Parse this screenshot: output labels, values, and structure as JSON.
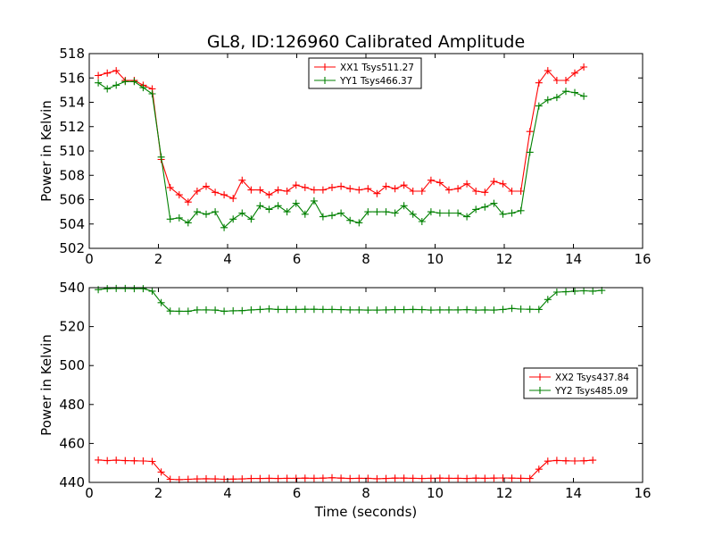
{
  "chart_data": [
    {
      "type": "line",
      "title": "GL8, ID:126960 Calibrated Amplitude",
      "xlabel": "",
      "ylabel": "Power in Kelvin",
      "xlim": [
        0,
        16
      ],
      "ylim": [
        502,
        518
      ],
      "xticks": [
        0,
        2,
        4,
        6,
        8,
        10,
        12,
        14,
        16
      ],
      "yticks": [
        502,
        504,
        506,
        508,
        510,
        512,
        514,
        516,
        518
      ],
      "legend_position": "top-center",
      "x": [
        0.26,
        0.52,
        0.78,
        1.04,
        1.3,
        1.56,
        1.82,
        2.08,
        2.34,
        2.6,
        2.86,
        3.12,
        3.38,
        3.64,
        3.9,
        4.16,
        4.42,
        4.68,
        4.94,
        5.2,
        5.46,
        5.72,
        5.98,
        6.24,
        6.5,
        6.76,
        7.02,
        7.28,
        7.54,
        7.8,
        8.06,
        8.32,
        8.58,
        8.84,
        9.1,
        9.36,
        9.62,
        9.88,
        10.14,
        10.4,
        10.66,
        10.92,
        11.18,
        11.44,
        11.7,
        11.96,
        12.22,
        12.48,
        12.74,
        13.0,
        13.26,
        13.52,
        13.78,
        14.04,
        14.3,
        14.56,
        14.82
      ],
      "series": [
        {
          "name": "XX1 Tsys511.27",
          "color": "#ff0000",
          "values": [
            516.2,
            516.4,
            516.6,
            515.8,
            515.8,
            515.4,
            515.1,
            509.3,
            507.0,
            506.4,
            505.8,
            506.7,
            507.1,
            506.6,
            506.4,
            506.1,
            507.6,
            506.8,
            506.8,
            506.4,
            506.8,
            506.7,
            507.2,
            507.0,
            506.8,
            506.8,
            507.0,
            507.1,
            506.9,
            506.8,
            506.9,
            506.5,
            507.1,
            506.9,
            507.2,
            506.7,
            506.7,
            507.6,
            507.4,
            506.8,
            506.9,
            507.3,
            506.7,
            506.6,
            507.5,
            507.3,
            506.7,
            506.7,
            511.6,
            515.6,
            516.6,
            515.8,
            515.8,
            516.4,
            516.9,
            null,
            null
          ]
        },
        {
          "name": "YY1 Tsys466.37",
          "color": "#008000",
          "values": [
            515.6,
            515.1,
            515.4,
            515.7,
            515.7,
            515.2,
            514.7,
            509.5,
            504.4,
            504.5,
            504.1,
            505.0,
            504.8,
            505.0,
            503.7,
            504.4,
            504.9,
            504.4,
            505.5,
            505.2,
            505.5,
            505.0,
            505.7,
            504.8,
            505.9,
            504.6,
            504.7,
            504.9,
            504.3,
            504.1,
            505.0,
            505.0,
            505.0,
            504.9,
            505.5,
            504.8,
            504.2,
            505.0,
            504.9,
            504.9,
            504.9,
            504.6,
            505.2,
            505.4,
            505.7,
            504.8,
            504.9,
            505.1,
            509.9,
            513.7,
            514.2,
            514.4,
            514.9,
            514.8,
            514.5,
            null,
            null
          ]
        }
      ]
    },
    {
      "type": "line",
      "title": "",
      "xlabel": "Time (seconds)",
      "ylabel": "Power in Kelvin",
      "xlim": [
        0,
        16
      ],
      "ylim": [
        440,
        540
      ],
      "xticks": [
        0,
        2,
        4,
        6,
        8,
        10,
        12,
        14,
        16
      ],
      "yticks": [
        440,
        460,
        480,
        500,
        520,
        540
      ],
      "legend_position": "center-right",
      "x": [
        0.26,
        0.52,
        0.78,
        1.04,
        1.3,
        1.56,
        1.82,
        2.08,
        2.34,
        2.6,
        2.86,
        3.12,
        3.38,
        3.64,
        3.9,
        4.16,
        4.42,
        4.68,
        4.94,
        5.2,
        5.46,
        5.72,
        5.98,
        6.24,
        6.5,
        6.76,
        7.02,
        7.28,
        7.54,
        7.8,
        8.06,
        8.32,
        8.58,
        8.84,
        9.1,
        9.36,
        9.62,
        9.88,
        10.14,
        10.4,
        10.66,
        10.92,
        11.18,
        11.44,
        11.7,
        11.96,
        12.22,
        12.48,
        12.74,
        13.0,
        13.26,
        13.52,
        13.78,
        14.04,
        14.3,
        14.56,
        14.82
      ],
      "series": [
        {
          "name": "XX2 Tsys437.84",
          "color": "#ff0000",
          "values": [
            451.5,
            451.2,
            451.4,
            451.2,
            451.1,
            451.0,
            450.8,
            445.3,
            441.6,
            441.4,
            441.6,
            441.8,
            441.9,
            441.8,
            441.6,
            441.7,
            441.8,
            442.0,
            442.0,
            442.1,
            442.0,
            442.1,
            442.1,
            442.2,
            442.1,
            442.2,
            442.4,
            442.2,
            442.0,
            442.1,
            442.1,
            441.9,
            442.0,
            442.2,
            442.2,
            442.1,
            442.0,
            442.1,
            442.2,
            442.1,
            442.1,
            442.0,
            442.2,
            442.1,
            442.2,
            442.3,
            442.2,
            442.1,
            442.0,
            446.8,
            450.9,
            451.3,
            451.1,
            451.0,
            451.1,
            451.4,
            null
          ]
        },
        {
          "name": "YY2 Tsys485.09",
          "color": "#008000",
          "values": [
            539.0,
            539.5,
            539.6,
            539.6,
            539.5,
            539.5,
            538.2,
            532.3,
            528.0,
            527.9,
            527.9,
            528.6,
            528.6,
            528.5,
            527.9,
            528.1,
            528.2,
            528.6,
            528.8,
            529.1,
            528.8,
            528.8,
            528.8,
            528.9,
            528.9,
            528.8,
            528.8,
            528.7,
            528.6,
            528.6,
            528.5,
            528.5,
            528.6,
            528.7,
            528.7,
            528.8,
            528.7,
            528.5,
            528.6,
            528.6,
            528.6,
            528.7,
            528.5,
            528.6,
            528.5,
            528.8,
            529.3,
            529.0,
            528.9,
            528.8,
            533.9,
            537.7,
            537.9,
            538.2,
            538.4,
            538.2,
            538.6
          ]
        }
      ]
    }
  ]
}
